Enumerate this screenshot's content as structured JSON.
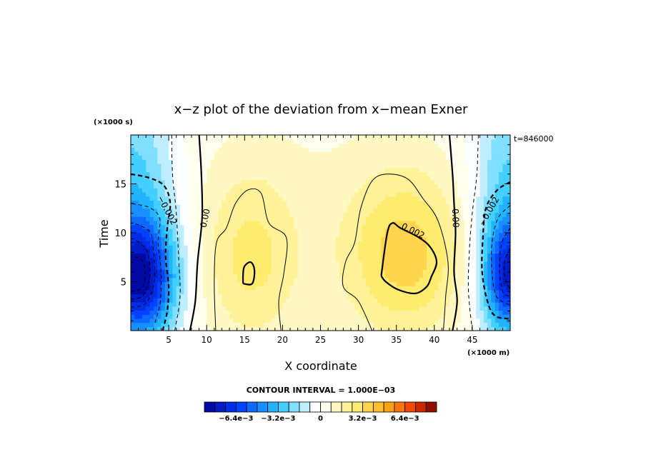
{
  "chart_data": {
    "type": "heatmap",
    "title": "x−z plot of the deviation from x−mean Exner",
    "xlabel": "X coordinate",
    "ylabel": "Time",
    "x_unit": "(×1000 m)",
    "y_unit": "(×1000 s)",
    "time_label": "t=846000",
    "xlim": [
      0,
      50
    ],
    "ylim": [
      0,
      20
    ],
    "x_ticks": [
      "5",
      "10",
      "15",
      "20",
      "25",
      "30",
      "35",
      "40",
      "45"
    ],
    "y_ticks": [
      "5",
      "10",
      "15"
    ],
    "contour_interval_text": "CONTOUR INTERVAL = 1.000E−03",
    "colorbar_labels": [
      "−6.4e−3",
      "−3.2e−3",
      "0",
      "3.2e−3",
      "6.4e−3"
    ],
    "colorbar_range": [
      -0.0088,
      0.0088
    ],
    "contour_labels": [
      {
        "text": "−0.002",
        "x": 4.8,
        "y": 12.3,
        "angle": 62
      },
      {
        "text": "0.00",
        "x": 9.8,
        "y": 11.5,
        "angle": -78
      },
      {
        "text": "0.002",
        "x": 37.2,
        "y": 10.2,
        "angle": 26
      },
      {
        "text": "0.00",
        "x": 42.8,
        "y": 11.5,
        "angle": 88
      },
      {
        "text": "−0.002",
        "x": 47.2,
        "y": 12.2,
        "angle": -60
      }
    ],
    "field_blobs": [
      {
        "cx": 1.3,
        "cy": 5.3,
        "sx": 3.4,
        "sy": 4.2,
        "amp": -0.0072
      },
      {
        "cx": 0.0,
        "cy": 13.5,
        "sx": 4.0,
        "sy": 9.0,
        "amp": -0.0032
      },
      {
        "cx": 50.0,
        "cy": 5.4,
        "sx": 2.6,
        "sy": 4.0,
        "amp": -0.0065
      },
      {
        "cx": 50.0,
        "cy": 14.0,
        "sx": 3.6,
        "sy": 8.5,
        "amp": -0.003
      },
      {
        "cx": 15.8,
        "cy": 7.5,
        "sx": 4.6,
        "sy": 6.5,
        "amp": 0.0021
      },
      {
        "cx": 36.2,
        "cy": 7.8,
        "sx": 5.6,
        "sy": 6.0,
        "amp": 0.0031
      },
      {
        "cx": 25.0,
        "cy": 12.0,
        "sx": 22.0,
        "sy": 14.0,
        "amp": 0.0007
      }
    ],
    "contours": [
      {
        "value": -0.002,
        "style": "dashed-thick",
        "points": [
          [
            4.2,
            0.0
          ],
          [
            4.8,
            2.0
          ],
          [
            5.0,
            4.5
          ],
          [
            4.6,
            7.5
          ],
          [
            4.8,
            10.5
          ],
          [
            5.2,
            13.0
          ],
          [
            4.4,
            14.8
          ],
          [
            2.5,
            15.6
          ],
          [
            0.0,
            16.0
          ]
        ]
      },
      {
        "value": -0.003,
        "style": "dashed",
        "points": [
          [
            3.2,
            0.8
          ],
          [
            3.9,
            3.0
          ],
          [
            4.0,
            6.0
          ],
          [
            3.6,
            9.0
          ],
          [
            3.8,
            11.5
          ],
          [
            2.4,
            12.6
          ],
          [
            0.0,
            13.0
          ]
        ]
      },
      {
        "value": -0.004,
        "style": "dashed",
        "points": [
          [
            0.0,
            2.4
          ],
          [
            2.0,
            2.8
          ],
          [
            3.1,
            5.0
          ],
          [
            3.0,
            8.0
          ],
          [
            2.6,
            10.0
          ],
          [
            1.0,
            10.8
          ],
          [
            0.0,
            11.0
          ]
        ]
      },
      {
        "value": -0.005,
        "style": "dashed",
        "points": [
          [
            0.0,
            3.2
          ],
          [
            1.6,
            3.6
          ],
          [
            2.5,
            5.5
          ],
          [
            2.2,
            8.0
          ],
          [
            0.8,
            9.2
          ],
          [
            0.0,
            9.4
          ]
        ]
      },
      {
        "value": -0.006,
        "style": "dashed",
        "points": [
          [
            0.0,
            4.0
          ],
          [
            1.5,
            4.4
          ],
          [
            1.9,
            5.8
          ],
          [
            1.5,
            7.2
          ],
          [
            0.0,
            7.6
          ]
        ]
      },
      {
        "value": -0.001,
        "style": "dashed",
        "points": [
          [
            5.8,
            0.0
          ],
          [
            6.5,
            3.5
          ],
          [
            6.3,
            7.5
          ],
          [
            6.0,
            12.0
          ],
          [
            5.5,
            16.0
          ],
          [
            5.4,
            20.0
          ]
        ]
      },
      {
        "value": 0.0,
        "style": "solid-thick",
        "points": [
          [
            7.8,
            0.0
          ],
          [
            8.5,
            3.0
          ],
          [
            8.8,
            7.0
          ],
          [
            9.4,
            11.5
          ],
          [
            9.3,
            16.0
          ],
          [
            9.0,
            20.0
          ]
        ]
      },
      {
        "value": 0.001,
        "style": "solid",
        "points": [
          [
            11.2,
            0.0
          ],
          [
            11.0,
            5.0
          ],
          [
            11.3,
            9.0
          ],
          [
            12.6,
            10.5
          ],
          [
            13.8,
            13.0
          ],
          [
            15.5,
            14.4
          ],
          [
            17.2,
            14.0
          ],
          [
            18.2,
            11.0
          ],
          [
            20.5,
            9.5
          ],
          [
            20.2,
            6.0
          ],
          [
            19.5,
            3.0
          ],
          [
            19.8,
            0.0
          ]
        ]
      },
      {
        "value": 0.002,
        "style": "solid-thick",
        "points": [
          [
            14.8,
            4.8
          ],
          [
            16.0,
            4.8
          ],
          [
            16.3,
            6.2
          ],
          [
            15.8,
            7.0
          ],
          [
            15.0,
            6.6
          ],
          [
            14.8,
            5.8
          ],
          [
            14.8,
            4.8
          ]
        ]
      },
      {
        "value": 0.001,
        "style": "solid",
        "points": [
          [
            31.8,
            0.0
          ],
          [
            30.0,
            3.0
          ],
          [
            28.0,
            4.5
          ],
          [
            28.3,
            7.0
          ],
          [
            29.5,
            9.0
          ],
          [
            30.3,
            12.5
          ],
          [
            31.8,
            15.3
          ],
          [
            33.8,
            16.0
          ],
          [
            36.5,
            15.5
          ],
          [
            38.5,
            13.5
          ],
          [
            40.5,
            11.2
          ],
          [
            41.8,
            7.0
          ],
          [
            41.5,
            3.5
          ],
          [
            41.2,
            0.0
          ]
        ]
      },
      {
        "value": 0.002,
        "style": "solid-thick",
        "points": [
          [
            33.0,
            5.6
          ],
          [
            33.8,
            10.0
          ],
          [
            34.5,
            11.0
          ],
          [
            35.5,
            10.5
          ],
          [
            38.0,
            9.5
          ],
          [
            39.5,
            8.5
          ],
          [
            40.3,
            7.0
          ],
          [
            39.6,
            5.5
          ],
          [
            39.0,
            4.5
          ],
          [
            37.5,
            3.8
          ],
          [
            35.2,
            4.2
          ],
          [
            33.6,
            5.0
          ],
          [
            33.0,
            5.6
          ]
        ]
      },
      {
        "value": 0.0,
        "style": "solid-thick",
        "points": [
          [
            42.4,
            0.0
          ],
          [
            43.0,
            3.0
          ],
          [
            42.6,
            6.0
          ],
          [
            42.8,
            10.0
          ],
          [
            42.6,
            13.0
          ],
          [
            42.4,
            16.0
          ],
          [
            42.0,
            20.0
          ]
        ]
      },
      {
        "value": -0.001,
        "style": "dashed",
        "points": [
          [
            45.0,
            0.0
          ],
          [
            44.5,
            4.0
          ],
          [
            44.6,
            8.0
          ],
          [
            45.0,
            12.0
          ],
          [
            45.6,
            16.0
          ],
          [
            45.8,
            20.0
          ]
        ]
      },
      {
        "value": -0.002,
        "style": "dashed-thick",
        "points": [
          [
            50.0,
            15.2
          ],
          [
            48.2,
            14.3
          ],
          [
            46.8,
            12.5
          ],
          [
            46.4,
            9.5
          ],
          [
            46.3,
            6.0
          ],
          [
            47.0,
            3.0
          ],
          [
            48.0,
            1.5
          ],
          [
            50.0,
            1.2
          ]
        ]
      },
      {
        "value": -0.003,
        "style": "dashed",
        "points": [
          [
            50.0,
            12.8
          ],
          [
            48.4,
            11.5
          ],
          [
            47.6,
            9.0
          ],
          [
            47.6,
            6.0
          ],
          [
            48.2,
            3.5
          ],
          [
            50.0,
            2.6
          ]
        ]
      },
      {
        "value": -0.004,
        "style": "dashed",
        "points": [
          [
            50.0,
            10.5
          ],
          [
            48.9,
            9.0
          ],
          [
            48.6,
            6.5
          ],
          [
            49.0,
            4.0
          ],
          [
            50.0,
            3.5
          ]
        ]
      },
      {
        "value": -0.005,
        "style": "dashed",
        "points": [
          [
            50.0,
            8.4
          ],
          [
            49.3,
            7.2
          ],
          [
            49.3,
            5.4
          ],
          [
            50.0,
            4.2
          ]
        ]
      }
    ]
  }
}
